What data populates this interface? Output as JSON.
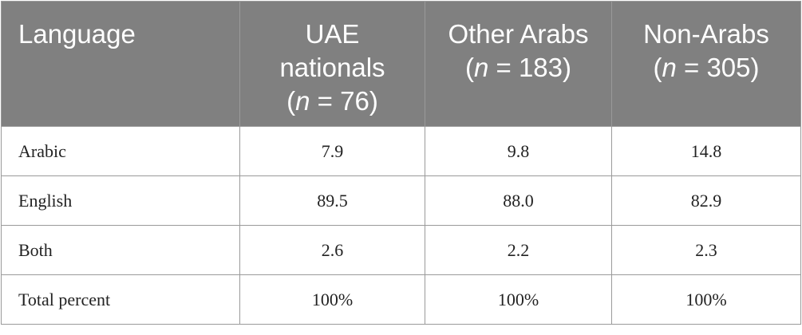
{
  "table": {
    "columns": [
      {
        "name": "Language"
      },
      {
        "name": "UAE nationals",
        "sample": [
          "(",
          "n",
          " = 76)"
        ]
      },
      {
        "name": "Other Arabs",
        "sample": [
          "(",
          "n",
          " = 183)"
        ]
      },
      {
        "name": "Non-Arabs",
        "sample": [
          "(",
          "n",
          " = 305)"
        ]
      }
    ],
    "rows": [
      [
        "Arabic",
        "7.9",
        "9.8",
        "14.8"
      ],
      [
        "English",
        "89.5",
        "88.0",
        "82.9"
      ],
      [
        "Both",
        "2.6",
        "2.2",
        "2.3"
      ],
      [
        "Total percent",
        "100%",
        "100%",
        "100%"
      ]
    ]
  }
}
